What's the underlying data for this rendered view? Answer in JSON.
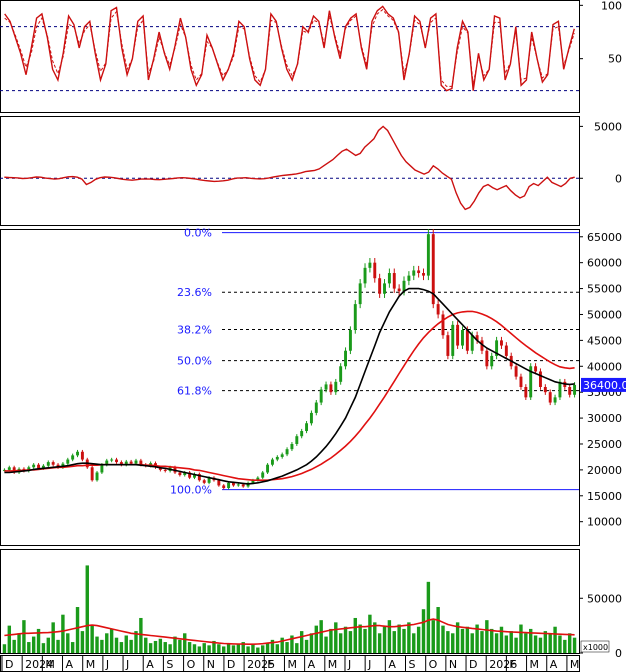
{
  "chart_data": {
    "type": "line",
    "colors": {
      "price_up": "#1a9a1a",
      "price_down": "#cc1010",
      "ma_fast": "#000000",
      "ma_slow": "#e01010",
      "fib_line": "#1a1aff",
      "level_line": "#000080",
      "osc": "#cc1010",
      "volume": "#1a9a1a",
      "price_tag_bg": "#1a1aff"
    },
    "months": [
      "D",
      "2024",
      "M",
      "A",
      "M",
      "J",
      "J",
      "A",
      "S",
      "O",
      "N",
      "D",
      "2025",
      "F",
      "M",
      "A",
      "M",
      "J",
      "J",
      "A",
      "S",
      "O",
      "N",
      "D",
      "2026",
      "F",
      "M",
      "A",
      "M"
    ],
    "x_axis": {
      "start": 0,
      "end": 28.5
    },
    "panels": {
      "stoch": {
        "ticks": [
          100,
          50
        ],
        "ylim": [
          0,
          105
        ],
        "levels": [
          80,
          20
        ],
        "values": [
          92,
          85,
          70,
          55,
          35,
          60,
          88,
          92,
          70,
          40,
          30,
          55,
          90,
          82,
          60,
          80,
          85,
          55,
          30,
          45,
          95,
          98,
          60,
          35,
          50,
          85,
          90,
          30,
          50,
          75,
          55,
          40,
          62,
          88,
          70,
          40,
          25,
          35,
          72,
          60,
          45,
          30,
          40,
          55,
          85,
          80,
          50,
          30,
          25,
          40,
          92,
          85,
          60,
          40,
          30,
          45,
          80,
          75,
          90,
          85,
          60,
          95,
          70,
          50,
          80,
          88,
          92,
          60,
          40,
          85,
          95,
          99,
          92,
          88,
          75,
          30,
          55,
          90,
          85,
          60,
          88,
          92,
          25,
          20,
          22,
          60,
          85,
          75,
          20,
          55,
          30,
          40,
          90,
          88,
          30,
          45,
          80,
          25,
          30,
          75,
          50,
          28,
          35,
          82,
          85,
          40,
          60,
          78
        ],
        "signal": [
          88,
          84,
          72,
          58,
          42,
          55,
          80,
          88,
          72,
          48,
          36,
          52,
          82,
          80,
          64,
          76,
          82,
          58,
          38,
          46,
          88,
          94,
          64,
          40,
          50,
          80,
          86,
          36,
          48,
          70,
          56,
          44,
          60,
          82,
          70,
          44,
          30,
          36,
          66,
          60,
          46,
          34,
          40,
          52,
          80,
          78,
          52,
          34,
          28,
          40,
          86,
          84,
          62,
          44,
          34,
          44,
          76,
          74,
          86,
          84,
          64,
          90,
          72,
          54,
          78,
          86,
          90,
          62,
          44,
          80,
          92,
          96,
          90,
          86,
          74,
          36,
          54,
          86,
          82,
          62,
          84,
          88,
          30,
          24,
          24,
          56,
          80,
          74,
          26,
          52,
          34,
          40,
          84,
          84,
          36,
          46,
          76,
          30,
          32,
          70,
          50,
          32,
          36,
          78,
          80,
          44,
          58,
          74
        ]
      },
      "macd": {
        "ticks": [
          5000,
          0
        ],
        "ylim": [
          -4500,
          6000
        ],
        "zero": 0,
        "values": [
          100,
          80,
          60,
          40,
          -20,
          0,
          60,
          120,
          100,
          20,
          -30,
          -80,
          -40,
          60,
          140,
          160,
          100,
          -80,
          -600,
          -400,
          -100,
          60,
          120,
          100,
          60,
          -20,
          -100,
          -150,
          -180,
          -140,
          -80,
          -60,
          -80,
          -120,
          -140,
          -100,
          -60,
          -20,
          40,
          60,
          40,
          -20,
          -80,
          -160,
          -220,
          -260,
          -300,
          -280,
          -240,
          -180,
          -60,
          20,
          40,
          60,
          0,
          -40,
          -60,
          -40,
          40,
          120,
          200,
          280,
          320,
          360,
          420,
          520,
          640,
          700,
          760,
          900,
          1200,
          1500,
          1800,
          2200,
          2600,
          2800,
          2500,
          2200,
          2400,
          3000,
          3400,
          3800,
          4600,
          5000,
          4600,
          3800,
          3000,
          2200,
          1600,
          1200,
          800,
          600,
          400,
          600,
          1200,
          900,
          500,
          200,
          -100,
          -1400,
          -2400,
          -3000,
          -2800,
          -2200,
          -1400,
          -800,
          -600,
          -900,
          -1100,
          -900,
          -700,
          -1200,
          -1600,
          -1900,
          -1700,
          -800,
          -500,
          -700,
          -300,
          100,
          -400,
          -600,
          -800,
          -500,
          0,
          100
        ]
      },
      "price": {
        "ticks": [
          65000,
          60000,
          55000,
          50000,
          45000,
          40000,
          35000,
          30000,
          25000,
          20000,
          15000,
          10000
        ],
        "ylim": [
          5500,
          66500
        ],
        "current_price_label": "36400.00",
        "fib_levels": [
          {
            "label": "0.0%",
            "value": 65800
          },
          {
            "label": "23.6%",
            "value": 54300
          },
          {
            "label": "38.2%",
            "value": 47100
          },
          {
            "label": "50.0%",
            "value": 41100
          },
          {
            "label": "61.8%",
            "value": 35300
          },
          {
            "label": "100.0%",
            "value": 16200
          }
        ],
        "close": [
          20000,
          20500,
          19500,
          20200,
          19800,
          20500,
          21000,
          20300,
          20800,
          21500,
          21000,
          20500,
          21200,
          22000,
          22800,
          23500,
          22000,
          20500,
          18000,
          19500,
          21000,
          21800,
          22000,
          21500,
          21000,
          21600,
          21200,
          21800,
          21000,
          20800,
          21300,
          20500,
          20000,
          19800,
          20500,
          19500,
          19000,
          19500,
          18500,
          19200,
          18000,
          17500,
          18500,
          18000,
          17000,
          16500,
          17500,
          17000,
          17200,
          16800,
          17500,
          18000,
          18500,
          19500,
          21000,
          22000,
          22500,
          23000,
          24000,
          25000,
          26500,
          27500,
          29000,
          31000,
          33000,
          35500,
          36500,
          35000,
          37000,
          40000,
          43000,
          47000,
          52000,
          56000,
          59000,
          60000,
          57000,
          54000,
          56000,
          58000,
          55000,
          54500,
          56500,
          57500,
          58500,
          58000,
          57500,
          65500,
          52000,
          50000,
          46000,
          42000,
          48000,
          44000,
          47000,
          43000,
          46000,
          45000,
          43000,
          40000,
          42000,
          45000,
          44000,
          42000,
          40000,
          38000,
          36000,
          34000,
          40000,
          39000,
          36000,
          35000,
          33000,
          34000,
          37000,
          36000,
          34500,
          36400
        ],
        "ma_fast": [
          19500,
          19500,
          19600,
          19700,
          19800,
          19900,
          20100,
          20200,
          20300,
          20400,
          20500,
          20600,
          20700,
          20800,
          21000,
          21200,
          21300,
          21300,
          21200,
          21100,
          21000,
          21000,
          21000,
          21000,
          21000,
          21000,
          21000,
          21000,
          20900,
          20800,
          20700,
          20600,
          20400,
          20300,
          20100,
          19900,
          19700,
          19500,
          19300,
          19100,
          18900,
          18700,
          18500,
          18300,
          18100,
          17900,
          17700,
          17600,
          17500,
          17400,
          17300,
          17400,
          17500,
          17700,
          17900,
          18200,
          18500,
          18800,
          19200,
          19600,
          20000,
          20500,
          21000,
          21700,
          22500,
          23500,
          24500,
          25700,
          27000,
          28500,
          30000,
          32000,
          34000,
          36500,
          39000,
          41500,
          44000,
          46500,
          48500,
          50500,
          52000,
          53500,
          54500,
          55000,
          55000,
          55000,
          54800,
          54500,
          54000,
          53000,
          52000,
          51000,
          50000,
          49000,
          48000,
          47000,
          46000,
          45000,
          44200,
          43500,
          43000,
          42500,
          42000,
          41500,
          41000,
          40500,
          40000,
          39500,
          39000,
          38600,
          38200,
          37800,
          37400,
          37000,
          36800,
          36600,
          36500,
          36600
        ],
        "ma_slow": [
          19800,
          19800,
          19800,
          19900,
          19900,
          20000,
          20000,
          20100,
          20200,
          20300,
          20400,
          20500,
          20500,
          20600,
          20700,
          20800,
          20800,
          20900,
          20900,
          20900,
          21000,
          21000,
          21000,
          21000,
          21000,
          21000,
          21000,
          21000,
          21000,
          20900,
          20900,
          20800,
          20700,
          20700,
          20600,
          20500,
          20400,
          20300,
          20200,
          20000,
          19900,
          19700,
          19500,
          19300,
          19100,
          18900,
          18700,
          18500,
          18300,
          18200,
          18100,
          18000,
          18000,
          18000,
          18000,
          18100,
          18200,
          18300,
          18500,
          18700,
          19000,
          19300,
          19700,
          20100,
          20600,
          21100,
          21700,
          22300,
          23000,
          23800,
          24600,
          25500,
          26500,
          27600,
          28800,
          30000,
          31300,
          32700,
          34100,
          35600,
          37100,
          38600,
          40100,
          41600,
          43000,
          44300,
          45500,
          46500,
          47400,
          48200,
          48900,
          49500,
          50000,
          50300,
          50500,
          50600,
          50600,
          50400,
          50100,
          49700,
          49200,
          48600,
          47900,
          47100,
          46300,
          45500,
          44700,
          44000,
          43300,
          42600,
          42000,
          41400,
          40800,
          40300,
          39900,
          39700,
          39600,
          39700
        ]
      },
      "volume": {
        "ticks": [
          50000,
          0
        ],
        "ylim": [
          0,
          95000
        ],
        "unit_label": "x1000",
        "values": [
          8000,
          25000,
          12000,
          18000,
          30000,
          10000,
          15000,
          22000,
          9000,
          14000,
          28000,
          12000,
          35000,
          18000,
          10000,
          42000,
          20000,
          80000,
          25000,
          15000,
          12000,
          18000,
          22000,
          14000,
          10000,
          16000,
          12000,
          20000,
          32000,
          14000,
          9000,
          11000,
          13000,
          10000,
          8000,
          15000,
          12000,
          18000,
          10000,
          8000,
          6000,
          9000,
          7000,
          11000,
          8000,
          6000,
          9000,
          7000,
          8000,
          10000,
          6000,
          8000,
          5000,
          7000,
          9000,
          12000,
          8000,
          14000,
          10000,
          16000,
          9000,
          20000,
          12000,
          18000,
          25000,
          30000,
          15000,
          22000,
          28000,
          18000,
          24000,
          20000,
          32000,
          26000,
          22000,
          35000,
          28000,
          18000,
          24000,
          30000,
          20000,
          26000,
          22000,
          28000,
          18000,
          24000,
          40000,
          65000,
          30000,
          42000,
          25000,
          20000,
          18000,
          28000,
          22000,
          24000,
          18000,
          26000,
          20000,
          30000,
          22000,
          18000,
          24000,
          16000,
          20000,
          14000,
          26000,
          18000,
          22000,
          16000,
          14000,
          20000,
          18000,
          24000,
          16000,
          12000,
          18000,
          14000
        ],
        "ma": [
          16000,
          16500,
          17000,
          17500,
          18000,
          18000,
          18200,
          18400,
          18500,
          18600,
          19000,
          19500,
          20000,
          21000,
          22000,
          23000,
          24000,
          25000,
          25500,
          25000,
          24000,
          23000,
          22000,
          21000,
          20000,
          19000,
          18000,
          17500,
          17000,
          16500,
          16000,
          15500,
          15000,
          14500,
          14000,
          13500,
          13000,
          12500,
          12000,
          11500,
          11000,
          10500,
          10000,
          9500,
          9000,
          8700,
          8500,
          8300,
          8200,
          8100,
          8000,
          8000,
          8200,
          8500,
          9000,
          9500,
          10000,
          11000,
          12000,
          13000,
          14000,
          15000,
          16000,
          17000,
          18000,
          19000,
          20000,
          21000,
          21500,
          22000,
          22500,
          23000,
          23500,
          24000,
          24000,
          24500,
          25000,
          25000,
          24500,
          24000,
          24000,
          24500,
          25000,
          25500,
          26000,
          27000,
          28000,
          30000,
          31000,
          30000,
          28000,
          26000,
          25000,
          24000,
          23500,
          23000,
          22500,
          22000,
          21500,
          21000,
          20500,
          20000,
          19800,
          19500,
          19200,
          19000,
          18800,
          18600,
          18400,
          18200,
          18000,
          17800,
          17600,
          17400,
          17200,
          17000,
          16800,
          16600
        ]
      }
    }
  }
}
